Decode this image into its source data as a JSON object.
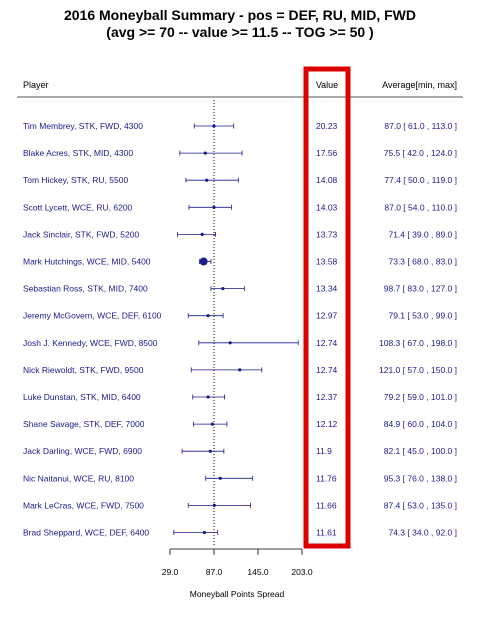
{
  "chart_data": {
    "type": "forest",
    "title_line1": "2016 Moneyball Summary - pos = DEF, RU, MID, FWD",
    "title_line2": "(avg >= 70 -- value >= 11.5 -- TOG >= 50 )",
    "columns": {
      "player": "Player",
      "value": "Value",
      "range": "Average[min, max]"
    },
    "xlabel": "Moneyball Points Spread",
    "xlim": [
      29.0,
      203.0
    ],
    "xticks": [
      "29.0",
      "87.0",
      "145.0",
      "203.0"
    ],
    "reference_line": 87.0,
    "highlight_color": "#dd0000",
    "series_color": "#1a1a8c",
    "rows": [
      {
        "player": "Tim Membrey, STK, FWD, 4300",
        "value": "20.23",
        "avg": 87.0,
        "min": 61.0,
        "max": 113.0,
        "range_text": "87.0 [ 61.0 , 113.0 ]"
      },
      {
        "player": "Blake Acres, STK, MID, 4300",
        "value": "17.56",
        "avg": 75.5,
        "min": 42.0,
        "max": 124.0,
        "range_text": "75.5 [ 42.0 , 124.0 ]"
      },
      {
        "player": "Tom Hickey, STK, RU, 5500",
        "value": "14.08",
        "avg": 77.4,
        "min": 50.0,
        "max": 119.0,
        "range_text": "77.4 [ 50.0 , 119.0 ]"
      },
      {
        "player": "Scott Lycett, WCE, RU, 6200",
        "value": "14.03",
        "avg": 87.0,
        "min": 54.0,
        "max": 110.0,
        "range_text": "87.0 [ 54.0 , 110.0 ]"
      },
      {
        "player": "Jack Sinclair, STK, FWD, 5200",
        "value": "13.73",
        "avg": 71.4,
        "min": 39.0,
        "max": 89.0,
        "range_text": "71.4 [ 39.0 ,  89.0 ]"
      },
      {
        "player": "Mark Hutchings, WCE, MID, 5400",
        "value": "13.58",
        "avg": 73.3,
        "min": 68.0,
        "max": 83.0,
        "range_text": "73.3 [ 68.0 ,  83.0 ]"
      },
      {
        "player": "Sebastian Ross, STK, MID, 7400",
        "value": "13.34",
        "avg": 98.7,
        "min": 83.0,
        "max": 127.0,
        "range_text": "98.7 [ 83.0 , 127.0 ]"
      },
      {
        "player": "Jeremy McGovern, WCE, DEF, 6100",
        "value": "12.97",
        "avg": 79.1,
        "min": 53.0,
        "max": 99.0,
        "range_text": "79.1 [ 53.0 ,  99.0 ]"
      },
      {
        "player": "Josh J. Kennedy, WCE, FWD, 8500",
        "value": "12.74",
        "avg": 108.3,
        "min": 67.0,
        "max": 198.0,
        "range_text": "108.3 [ 67.0 , 198.0 ]"
      },
      {
        "player": "Nick Riewoldt, STK, FWD, 9500",
        "value": "12.74",
        "avg": 121.0,
        "min": 57.0,
        "max": 150.0,
        "range_text": "121.0 [ 57.0 , 150.0 ]"
      },
      {
        "player": "Luke Dunstan, STK, MID, 6400",
        "value": "12.37",
        "avg": 79.2,
        "min": 59.0,
        "max": 101.0,
        "range_text": "79.2 [ 59.0 , 101.0 ]"
      },
      {
        "player": "Shane Savage, STK, DEF, 7000",
        "value": "12.12",
        "avg": 84.9,
        "min": 60.0,
        "max": 104.0,
        "range_text": "84.9 [ 60.0 , 104.0 ]"
      },
      {
        "player": "Jack Darling, WCE, FWD, 6900",
        "value": "11.9",
        "avg": 82.1,
        "min": 45.0,
        "max": 100.0,
        "range_text": "82.1 [ 45.0 , 100.0 ]"
      },
      {
        "player": "Nic Naitanui, WCE, RU, 8100",
        "value": "11.76",
        "avg": 95.3,
        "min": 76.0,
        "max": 138.0,
        "range_text": "95.3 [ 76.0 , 138.0 ]"
      },
      {
        "player": "Mark LeCras, WCE, FWD, 7500",
        "value": "11.66",
        "avg": 87.4,
        "min": 53.0,
        "max": 135.0,
        "range_text": "87.4 [ 53.0 , 135.0 ]"
      },
      {
        "player": "Brad Sheppard, WCE, DEF, 6400",
        "value": "11.61",
        "avg": 74.3,
        "min": 34.0,
        "max": 92.0,
        "range_text": "74.3 [ 34.0 ,  92.0 ]"
      }
    ]
  }
}
